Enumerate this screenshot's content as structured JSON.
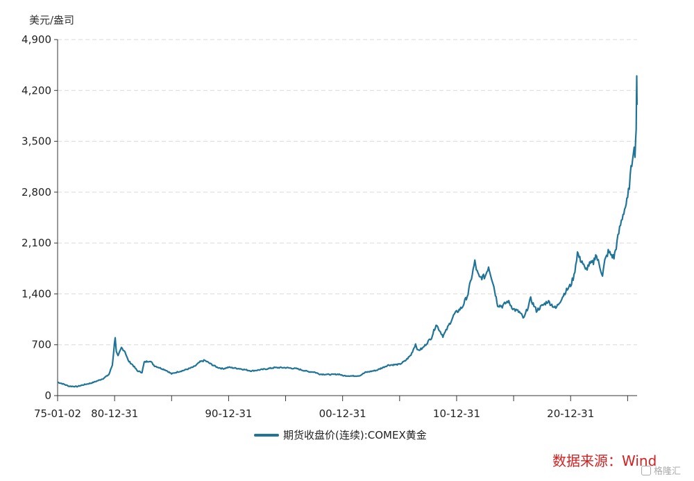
{
  "chart_data": {
    "type": "line",
    "ylabel": "美元/盎司",
    "ylim": [
      0,
      4900
    ],
    "yticks": [
      0,
      700,
      1400,
      2100,
      2800,
      3500,
      4200,
      4900
    ],
    "ytick_labels": [
      "0",
      "700",
      "1,400",
      "2,100",
      "2,800",
      "3,500",
      "4,200",
      "4,900"
    ],
    "xlim": [
      1975.0,
      2025.83
    ],
    "xtick_positions": [
      1975.0,
      1980.0,
      1985.0,
      1990.0,
      1995.0,
      2000.0,
      2005.0,
      2010.0,
      2015.0,
      2020.0,
      2025.0
    ],
    "xtick_labels": [
      "75-01-02",
      "80-12-31",
      "",
      "90-12-31",
      "",
      "00-12-31",
      "",
      "10-12-31",
      "",
      "20-12-31",
      ""
    ],
    "grid": true,
    "legend_position": "bottom",
    "series": [
      {
        "name": "期货收盘价(连续):COMEX黄金",
        "color": "#1f7498",
        "x": [
          1975.0,
          1975.5,
          1976.0,
          1976.7,
          1977.3,
          1978.0,
          1978.6,
          1979.0,
          1979.5,
          1979.8,
          1980.05,
          1980.15,
          1980.3,
          1980.6,
          1980.9,
          1981.2,
          1981.6,
          1982.0,
          1982.4,
          1982.6,
          1983.1,
          1983.5,
          1984.0,
          1984.5,
          1985.0,
          1985.5,
          1986.0,
          1986.5,
          1987.0,
          1987.5,
          1987.9,
          1988.5,
          1989.0,
          1989.5,
          1990.0,
          1990.5,
          1991.0,
          1992.0,
          1993.0,
          1994.0,
          1995.0,
          1996.0,
          1997.0,
          1997.5,
          1998.0,
          1999.0,
          1999.7,
          2000.0,
          2001.0,
          2001.5,
          2002.0,
          2003.0,
          2004.0,
          2005.0,
          2005.5,
          2006.0,
          2006.4,
          2006.6,
          2007.0,
          2007.8,
          2008.2,
          2008.8,
          2009.0,
          2009.8,
          2010.5,
          2011.0,
          2011.6,
          2011.8,
          2012.0,
          2012.5,
          2012.8,
          2013.2,
          2013.6,
          2014.0,
          2014.5,
          2015.0,
          2015.5,
          2015.9,
          2016.5,
          2017.0,
          2018.0,
          2018.7,
          2019.0,
          2019.5,
          2020.0,
          2020.3,
          2020.6,
          2020.8,
          2021.0,
          2021.3,
          2021.6,
          2022.0,
          2022.2,
          2022.8,
          2023.0,
          2023.3,
          2023.8,
          2024.0,
          2024.3,
          2024.6,
          2025.0,
          2025.3,
          2025.5,
          2025.65,
          2025.75,
          2025.8,
          2025.83
        ],
        "y": [
          185,
          160,
          130,
          125,
          150,
          175,
          210,
          235,
          290,
          420,
          810,
          600,
          540,
          660,
          610,
          480,
          420,
          340,
          320,
          460,
          480,
          410,
          380,
          350,
          300,
          325,
          345,
          370,
          400,
          465,
          485,
          430,
          390,
          370,
          390,
          380,
          370,
          340,
          360,
          385,
          385,
          370,
          330,
          325,
          295,
          290,
          295,
          275,
          270,
          275,
          320,
          350,
          420,
          430,
          480,
          560,
          710,
          620,
          650,
          800,
          980,
          820,
          870,
          1120,
          1220,
          1400,
          1840,
          1700,
          1620,
          1640,
          1780,
          1550,
          1250,
          1230,
          1300,
          1190,
          1150,
          1060,
          1330,
          1170,
          1300,
          1200,
          1280,
          1420,
          1520,
          1650,
          1970,
          1880,
          1850,
          1720,
          1800,
          1830,
          1950,
          1660,
          1850,
          1980,
          1900,
          2050,
          2300,
          2500,
          2700,
          3100,
          3400,
          3350,
          3700,
          4350,
          4000
        ]
      }
    ]
  },
  "source_text": "数据来源：Wind",
  "watermark_text": "格隆汇"
}
